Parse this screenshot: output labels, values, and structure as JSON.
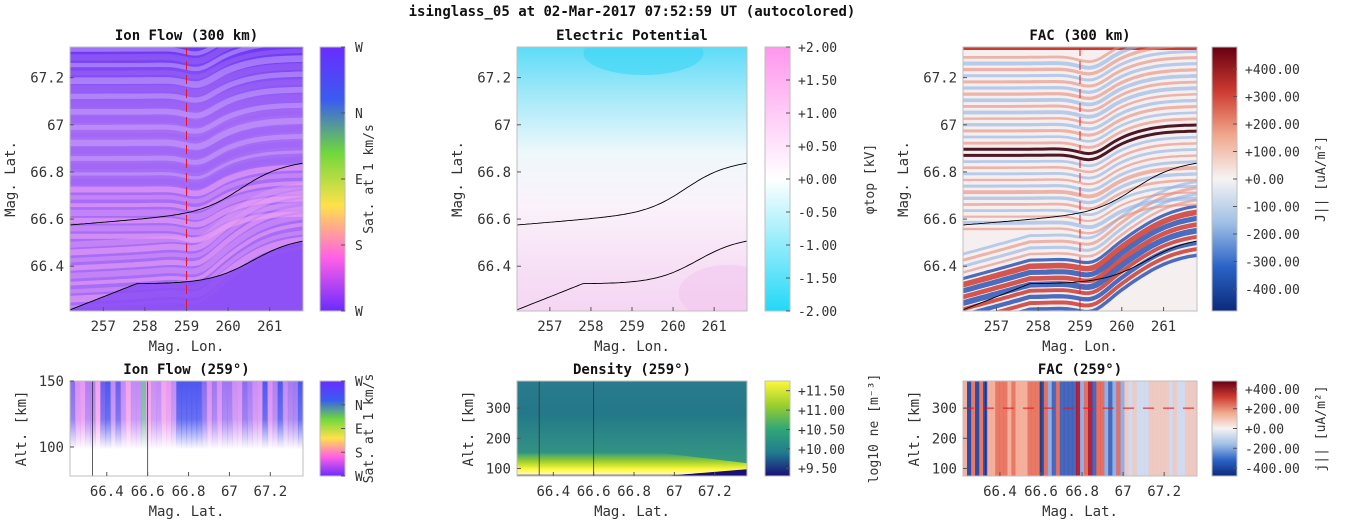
{
  "figure": {
    "title": "isinglass_05 at 02-Mar-2017 07:52:59 UT (autocolored)"
  },
  "colors": {
    "ion_flow": [
      "#6a2cff",
      "#ff5fe6",
      "#ffe14a",
      "#6fd83c",
      "#3a5cf0",
      "#6a2cff"
    ],
    "potential": [
      "#22d8f7",
      "#ffffff",
      "#ff96ee"
    ],
    "fac": [
      "#0c2a7a",
      "#2a63c6",
      "#9fbfe6",
      "#f6f3f3",
      "#f0a78c",
      "#cd3a30",
      "#660012"
    ],
    "density": [
      "#1a0f79",
      "#217c8f",
      "#33a875",
      "#9ccf2c",
      "#fff83a"
    ]
  },
  "chart_data": [
    {
      "id": "ion_flow_300",
      "type": "heatmap",
      "title": "Ion Flow (300 km)",
      "xlabel": "Mag. Lon.",
      "ylabel": "Mag. Lat.",
      "xlim": [
        256.2,
        261.8
      ],
      "ylim": [
        66.21,
        67.33
      ],
      "xticks": [
        257,
        258,
        259,
        260,
        261
      ],
      "xtick_labels": [
        "257",
        "258",
        "259",
        "260",
        "261"
      ],
      "yticks": [
        66.4,
        66.6,
        66.8,
        67,
        67.2
      ],
      "ytick_labels": [
        "66.4",
        "66.6",
        "66.8",
        "67",
        "67.2"
      ],
      "cut_lon": 259,
      "colorbar": {
        "label": "Sat. at 1 km/s",
        "ticks": [
          "W",
          "N",
          "E",
          "S",
          "W"
        ]
      }
    },
    {
      "id": "electric_potential",
      "type": "heatmap",
      "title": "Electric Potential",
      "xlabel": "Mag. Lon.",
      "ylabel": "Mag. Lat.",
      "xlim": [
        256.2,
        261.8
      ],
      "ylim": [
        66.21,
        67.33
      ],
      "xticks": [
        257,
        258,
        259,
        260,
        261
      ],
      "xtick_labels": [
        "257",
        "258",
        "259",
        "260",
        "261"
      ],
      "yticks": [
        66.4,
        66.6,
        66.8,
        67,
        67.2
      ],
      "ytick_labels": [
        "66.4",
        "66.6",
        "66.8",
        "67",
        "67.2"
      ],
      "colorbar": {
        "label": "φtop [kV]",
        "range": [
          -2.0,
          2.0
        ],
        "ticks": [
          "+2.00",
          "+1.50",
          "+1.00",
          "+0.50",
          "+0.00",
          "-0.50",
          "-1.00",
          "-1.50",
          "-2.00"
        ]
      }
    },
    {
      "id": "fac_300",
      "type": "heatmap",
      "title": "FAC (300 km)",
      "xlabel": "Mag. Lon.",
      "ylabel": "Mag. Lat.",
      "xlim": [
        256.2,
        261.8
      ],
      "ylim": [
        66.21,
        67.33
      ],
      "xticks": [
        257,
        258,
        259,
        260,
        261
      ],
      "xtick_labels": [
        "257",
        "258",
        "259",
        "260",
        "261"
      ],
      "yticks": [
        66.4,
        66.6,
        66.8,
        67,
        67.2
      ],
      "ytick_labels": [
        "66.4",
        "66.6",
        "66.8",
        "67",
        "67.2"
      ],
      "cut_lon": 259,
      "colorbar": {
        "label": "J|| [uA/m²]",
        "range": [
          -480,
          480
        ],
        "ticks": [
          "+400.00",
          "+300.00",
          "+200.00",
          "+100.00",
          "+0.00",
          "-100.00",
          "-200.00",
          "-300.00",
          "-400.00"
        ]
      }
    },
    {
      "id": "ion_flow_259",
      "type": "heatmap",
      "title": "Ion Flow (259°)",
      "xlabel": "Mag. Lat.",
      "ylabel": "Alt. [km]",
      "xlim": [
        66.22,
        67.36
      ],
      "ylim": [
        78,
        150
      ],
      "xticks": [
        66.4,
        66.6,
        66.8,
        67,
        67.2
      ],
      "xtick_labels": [
        "66.4",
        "66.6",
        "66.8",
        "67",
        "67.2"
      ],
      "yticks": [
        100,
        150
      ],
      "ytick_labels": [
        "100",
        "150"
      ],
      "colorbar": {
        "label": "Sat. at 1 km/s",
        "ticks": [
          "W",
          "N",
          "E",
          "S",
          "W"
        ]
      }
    },
    {
      "id": "density_259",
      "type": "heatmap",
      "title": "Density (259°)",
      "xlabel": "Mag. Lat.",
      "ylabel": "Alt. [km]",
      "xlim": [
        66.22,
        67.36
      ],
      "ylim": [
        75,
        390
      ],
      "xticks": [
        66.4,
        66.6,
        66.8,
        67,
        67.2
      ],
      "xtick_labels": [
        "66.4",
        "66.6",
        "66.8",
        "67",
        "67.2"
      ],
      "yticks": [
        100,
        200,
        300
      ],
      "ytick_labels": [
        "100",
        "200",
        "300"
      ],
      "colorbar": {
        "label": "log10 ne [m⁻³]",
        "range": [
          9.3,
          11.75
        ],
        "ticks": [
          "+11.50",
          "+11.00",
          "+10.50",
          "+10.00",
          "+9.50"
        ]
      }
    },
    {
      "id": "fac_259",
      "type": "heatmap",
      "title": "FAC (259°)",
      "xlabel": "Mag. Lat.",
      "ylabel": "Alt. [km]",
      "xlim": [
        66.22,
        67.36
      ],
      "ylim": [
        75,
        390
      ],
      "xticks": [
        66.4,
        66.6,
        66.8,
        67,
        67.2
      ],
      "xtick_labels": [
        "66.4",
        "66.6",
        "66.8",
        "67",
        "67.2"
      ],
      "yticks": [
        100,
        200,
        300
      ],
      "ytick_labels": [
        "100",
        "200",
        "300"
      ],
      "cut_alt": 300,
      "colorbar": {
        "label": "j|| [uA/m²]",
        "range": [
          -480,
          480
        ],
        "ticks": [
          "+400.00",
          "+200.00",
          "+0.00",
          "-200.00",
          "-400.00"
        ]
      }
    }
  ]
}
